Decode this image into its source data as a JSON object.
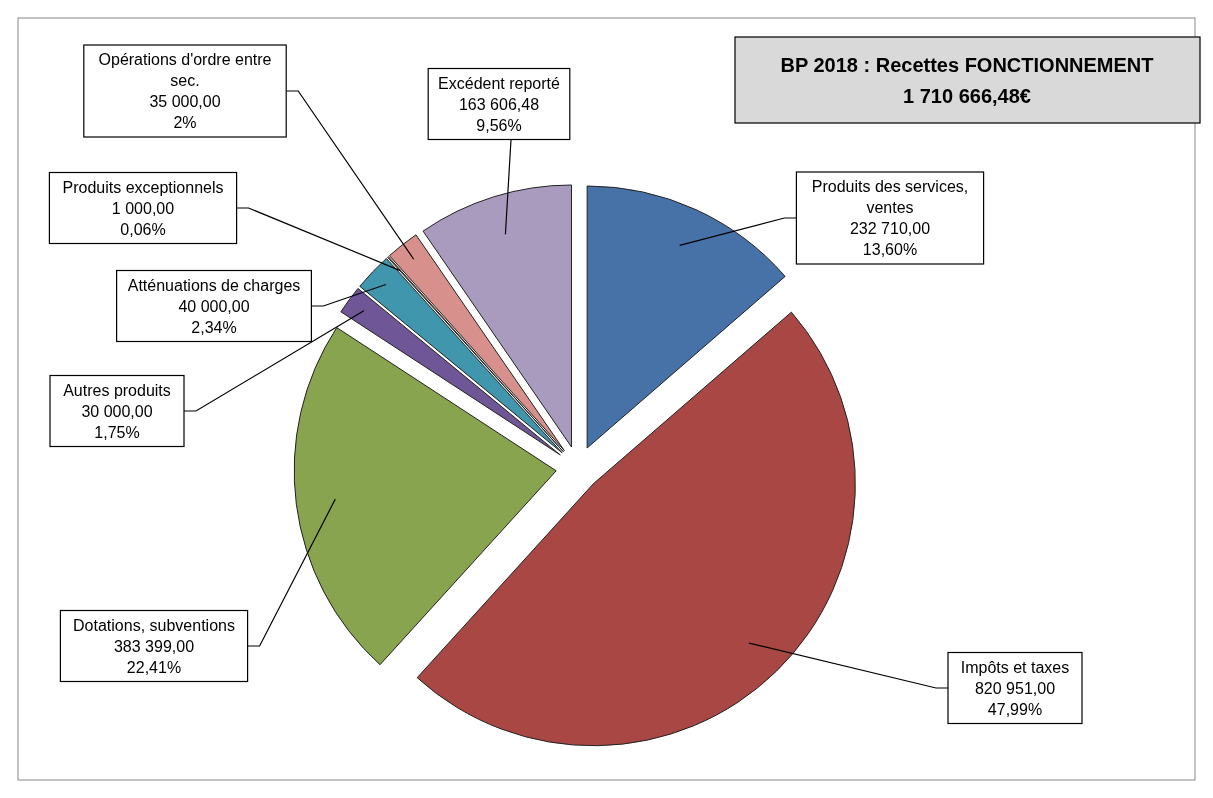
{
  "chart_data": {
    "type": "pie",
    "title": "BP 2018 : Recettes FONCTIONNEMENT",
    "subtitle": "1 710 666,48€",
    "categories": [
      "Produits des services, ventes",
      "Impôts et taxes",
      "Dotations, subventions",
      "Autres produits",
      "Atténuations de charges",
      "Produits exceptionnels",
      "Opérations d'ordre entre sec.",
      "Excédent reporté"
    ],
    "values": [
      232710,
      820951,
      383399,
      30000,
      40000,
      1000,
      35000,
      163606.48
    ],
    "value_labels": [
      "232 710,00\n13,60%",
      "820 951,00\n47,99%",
      "383 399,00\n22,41%",
      "30 000,00\n1,75%",
      "40 000,00\n2,34%",
      "1 000,00\n0,06%",
      "35 000,00\n2%",
      "163 606,48\n9,56%"
    ],
    "colors": [
      "#4672a8",
      "#a94744",
      "#88a44e",
      "#6f5797",
      "#3f96ad",
      "#e0a060",
      "#d8908c",
      "#a99bbe"
    ]
  }
}
